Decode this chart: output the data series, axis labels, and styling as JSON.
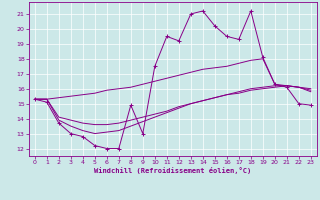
{
  "xlabel": "Windchill (Refroidissement éolien,°C)",
  "background_color": "#cce8e8",
  "grid_color": "#b0d8d8",
  "line_color": "#880088",
  "ylim": [
    11.5,
    21.8
  ],
  "xlim": [
    -0.5,
    23.5
  ],
  "yticks": [
    12,
    13,
    14,
    15,
    16,
    17,
    18,
    19,
    20,
    21
  ],
  "xticks": [
    0,
    1,
    2,
    3,
    4,
    5,
    6,
    7,
    8,
    9,
    10,
    11,
    12,
    13,
    14,
    15,
    16,
    17,
    18,
    19,
    20,
    21,
    22,
    23
  ],
  "series1_x": [
    0,
    1,
    2,
    3,
    4,
    5,
    6,
    7,
    8,
    9,
    10,
    11,
    12,
    13,
    14,
    15,
    16,
    17,
    18,
    19,
    20,
    21,
    22,
    23
  ],
  "series1_y": [
    15.3,
    15.1,
    13.7,
    13.0,
    12.8,
    12.2,
    12.0,
    12.0,
    14.9,
    13.0,
    17.5,
    19.5,
    19.2,
    21.0,
    21.2,
    20.2,
    19.5,
    19.3,
    21.2,
    18.1,
    16.3,
    16.1,
    15.0,
    14.9
  ],
  "series2_x": [
    0,
    1,
    2,
    3,
    4,
    5,
    6,
    7,
    8,
    9,
    10,
    11,
    12,
    13,
    14,
    15,
    16,
    17,
    18,
    19,
    20,
    21,
    22,
    23
  ],
  "series2_y": [
    15.3,
    15.3,
    15.4,
    15.5,
    15.6,
    15.7,
    15.9,
    16.0,
    16.1,
    16.3,
    16.5,
    16.7,
    16.9,
    17.1,
    17.3,
    17.4,
    17.5,
    17.7,
    17.9,
    18.0,
    16.3,
    16.2,
    16.1,
    16.0
  ],
  "series3_x": [
    0,
    1,
    2,
    3,
    4,
    5,
    6,
    7,
    8,
    9,
    10,
    11,
    12,
    13,
    14,
    15,
    16,
    17,
    18,
    19,
    20,
    21,
    22,
    23
  ],
  "series3_y": [
    15.3,
    15.3,
    13.9,
    13.5,
    13.2,
    13.0,
    13.1,
    13.2,
    13.5,
    13.8,
    14.1,
    14.4,
    14.7,
    15.0,
    15.2,
    15.4,
    15.6,
    15.8,
    16.0,
    16.1,
    16.2,
    16.2,
    16.1,
    15.8
  ],
  "series4_x": [
    0,
    1,
    2,
    3,
    4,
    5,
    6,
    7,
    8,
    9,
    10,
    11,
    12,
    13,
    14,
    15,
    16,
    17,
    18,
    19,
    20,
    21,
    22,
    23
  ],
  "series4_y": [
    15.3,
    15.3,
    14.1,
    13.9,
    13.7,
    13.6,
    13.6,
    13.7,
    13.9,
    14.1,
    14.3,
    14.5,
    14.8,
    15.0,
    15.2,
    15.4,
    15.6,
    15.7,
    15.9,
    16.0,
    16.1,
    16.2,
    16.1,
    15.9
  ]
}
